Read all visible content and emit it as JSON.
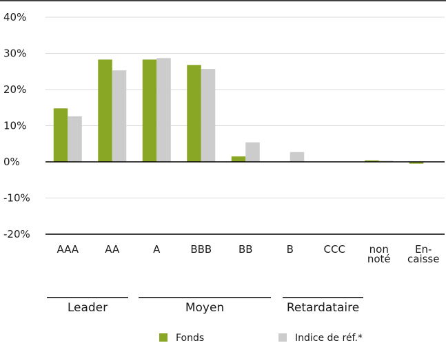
{
  "colors": {
    "fonds": "#8aa625",
    "index": "#cccccc",
    "axis": "#000000",
    "grid": "#d9d9d9"
  },
  "chart_data": {
    "type": "bar",
    "categories": [
      "AAA",
      "AA",
      "A",
      "BBB",
      "BB",
      "B",
      "CCC",
      "non noté",
      "En-caisse"
    ],
    "category_lines": [
      [
        "AAA"
      ],
      [
        "AA"
      ],
      [
        "A"
      ],
      [
        "BBB"
      ],
      [
        "BB"
      ],
      [
        "B"
      ],
      [
        "CCC"
      ],
      [
        "non",
        "noté"
      ],
      [
        "En-",
        "caisse"
      ]
    ],
    "series": [
      {
        "name": "Fonds",
        "values": [
          14.8,
          28.3,
          28.3,
          26.8,
          1.5,
          0,
          0,
          0.4,
          -0.5
        ]
      },
      {
        "name": "Indice de réf.*",
        "values": [
          12.6,
          25.3,
          28.7,
          25.7,
          5.4,
          2.7,
          0,
          0.3,
          0
        ]
      }
    ],
    "ylim": [
      -20,
      40
    ],
    "yticks": [
      "40%",
      "30%",
      "20%",
      "10%",
      "0%",
      "-10%",
      "-20%"
    ],
    "ytick_values": [
      40,
      30,
      20,
      10,
      0,
      -10,
      -20
    ],
    "groups": [
      {
        "label": "Leader",
        "from": "AAA",
        "to": "AA"
      },
      {
        "label": "Moyen",
        "from": "A",
        "to": "BB"
      },
      {
        "label": "Retardataire",
        "from": "B",
        "to": "CCC"
      }
    ],
    "legend": [
      "Fonds",
      "Indice de réf.*"
    ],
    "grid": true,
    "legend_position": "bottom"
  }
}
